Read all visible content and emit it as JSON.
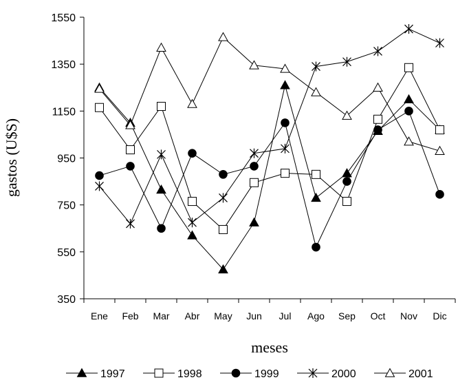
{
  "chart_data": {
    "type": "line",
    "xlabel": "meses",
    "ylabel": "gastos (U$S)",
    "categories": [
      "Ene",
      "Feb",
      "Mar",
      "Abr",
      "May",
      "Jun",
      "Jul",
      "Ago",
      "Sep",
      "Oct",
      "Nov",
      "Dic"
    ],
    "ylim": [
      350,
      1550
    ],
    "yticks": [
      350,
      550,
      750,
      950,
      1150,
      1350,
      1550
    ],
    "grid": false,
    "legend_position": "bottom",
    "series": [
      {
        "name": "1997",
        "marker": "filled-triangle",
        "values": [
          1250,
          1100,
          815,
          620,
          475,
          675,
          1260,
          780,
          885,
          1065,
          1200,
          1070
        ]
      },
      {
        "name": "1998",
        "marker": "open-square",
        "values": [
          1165,
          985,
          1170,
          765,
          645,
          845,
          885,
          880,
          765,
          1115,
          1335,
          1070
        ]
      },
      {
        "name": "1999",
        "marker": "filled-circle",
        "values": [
          875,
          915,
          650,
          970,
          880,
          915,
          1100,
          570,
          850,
          1070,
          1150,
          795
        ]
      },
      {
        "name": "2000",
        "marker": "asterisk",
        "values": [
          830,
          670,
          965,
          675,
          780,
          970,
          990,
          1340,
          1360,
          1405,
          1500,
          1440
        ]
      },
      {
        "name": "2001",
        "marker": "open-triangle",
        "values": [
          1245,
          1090,
          1420,
          1180,
          1465,
          1345,
          1330,
          1230,
          1130,
          1250,
          1020,
          980
        ]
      }
    ]
  }
}
